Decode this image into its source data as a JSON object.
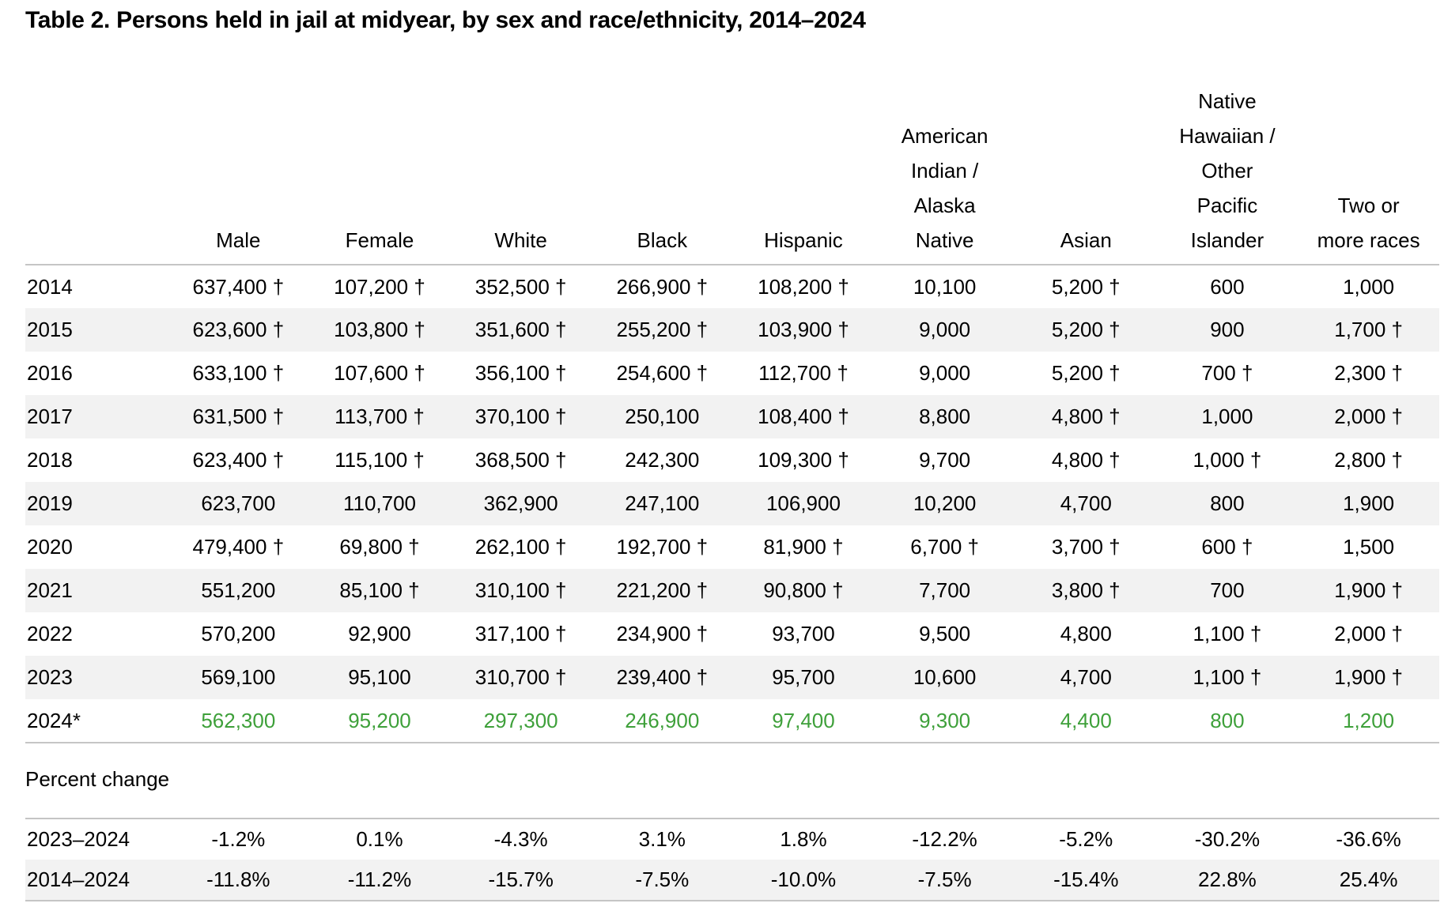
{
  "chart_data": {
    "type": "table",
    "title": "Table 2. Persons held in jail at midyear, by sex and race/ethnicity, 2014–2024",
    "colors": {
      "projected_green": "#3ea03a",
      "stripe": "#f2f2f2",
      "rule": "#c5c5c5",
      "text": "#000000"
    },
    "columns": [
      "Male",
      "Female",
      "White",
      "Black",
      "Hispanic",
      "American\nIndian /\nAlaska\nNative",
      "Asian",
      "Native\nHawaiian /\nOther\nPacific\nIslander",
      "Two or\nmore races"
    ],
    "rows": [
      {
        "year": "2014",
        "highlight": false,
        "values": [
          "637,400 †",
          "107,200 †",
          "352,500 †",
          "266,900 †",
          "108,200 †",
          "10,100",
          "5,200 †",
          "600",
          "1,000"
        ]
      },
      {
        "year": "2015",
        "highlight": false,
        "values": [
          "623,600 †",
          "103,800 †",
          "351,600 †",
          "255,200 †",
          "103,900 †",
          "9,000",
          "5,200 †",
          "900",
          "1,700 †"
        ]
      },
      {
        "year": "2016",
        "highlight": false,
        "values": [
          "633,100 †",
          "107,600 †",
          "356,100 †",
          "254,600 †",
          "112,700 †",
          "9,000",
          "5,200 †",
          "700 †",
          "2,300 †"
        ]
      },
      {
        "year": "2017",
        "highlight": false,
        "values": [
          "631,500 †",
          "113,700 †",
          "370,100 †",
          "250,100",
          "108,400 †",
          "8,800",
          "4,800 †",
          "1,000",
          "2,000 †"
        ]
      },
      {
        "year": "2018",
        "highlight": false,
        "values": [
          "623,400 †",
          "115,100 †",
          "368,500 †",
          "242,300",
          "109,300 †",
          "9,700",
          "4,800 †",
          "1,000 †",
          "2,800 †"
        ]
      },
      {
        "year": "2019",
        "highlight": false,
        "values": [
          "623,700",
          "110,700",
          "362,900",
          "247,100",
          "106,900",
          "10,200",
          "4,700",
          "800",
          "1,900"
        ]
      },
      {
        "year": "2020",
        "highlight": false,
        "values": [
          "479,400 †",
          "69,800 †",
          "262,100 †",
          "192,700 †",
          "81,900 †",
          "6,700 †",
          "3,700 †",
          "600 †",
          "1,500"
        ]
      },
      {
        "year": "2021",
        "highlight": false,
        "values": [
          "551,200",
          "85,100 †",
          "310,100 †",
          "221,200 †",
          "90,800 †",
          "7,700",
          "3,800 †",
          "700",
          "1,900 †"
        ]
      },
      {
        "year": "2022",
        "highlight": false,
        "values": [
          "570,200",
          "92,900",
          "317,100 †",
          "234,900 †",
          "93,700",
          "9,500",
          "4,800",
          "1,100 †",
          "2,000 †"
        ]
      },
      {
        "year": "2023",
        "highlight": false,
        "values": [
          "569,100",
          "95,100",
          "310,700 †",
          "239,400 †",
          "95,700",
          "10,600",
          "4,700",
          "1,100 †",
          "1,900 †"
        ]
      },
      {
        "year": "2024*",
        "highlight": true,
        "values": [
          "562,300",
          "95,200",
          "297,300",
          "246,900",
          "97,400",
          "9,300",
          "4,400",
          "800",
          "1,200"
        ]
      }
    ],
    "percent_change": {
      "heading": "Percent change",
      "rows": [
        {
          "label": "2023–2024",
          "values": [
            "-1.2%",
            "0.1%",
            "-4.3%",
            "3.1%",
            "1.8%",
            "-12.2%",
            "-5.2%",
            "-30.2%",
            "-36.6%"
          ]
        },
        {
          "label": "2014–2024",
          "values": [
            "-11.8%",
            "-11.2%",
            "-15.7%",
            "-7.5%",
            "-10.0%",
            "-7.5%",
            "-15.4%",
            "22.8%",
            "25.4%"
          ]
        }
      ]
    }
  }
}
